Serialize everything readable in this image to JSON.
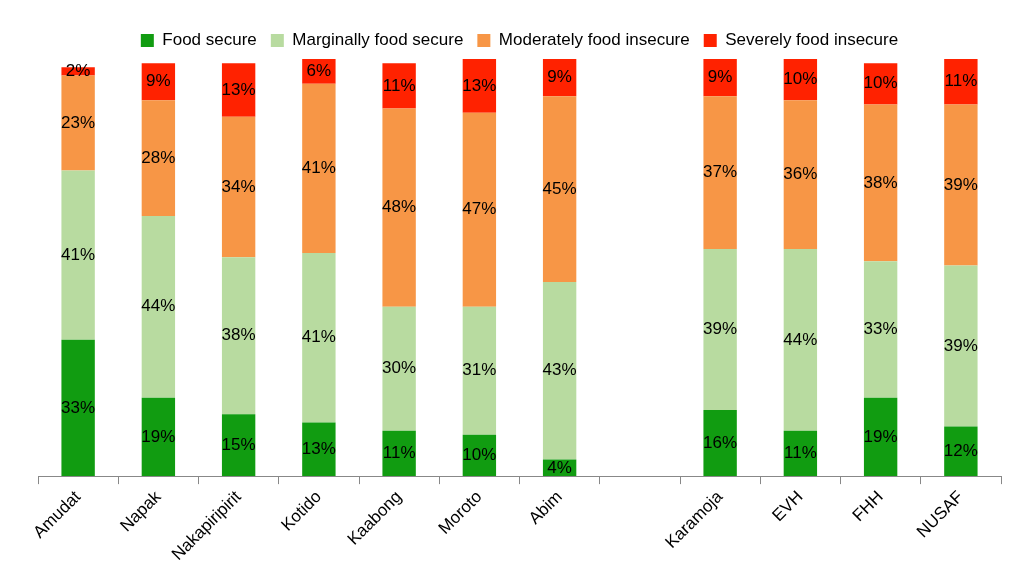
{
  "chart_data": {
    "type": "bar",
    "stacked": true,
    "legend": "top",
    "tick_labels": "x",
    "categories": [
      "Amudat",
      "Napak",
      "Nakapiripirit",
      "Kotido",
      "Kaabong",
      "Moroto",
      "Abim",
      null,
      "Karamoja",
      "EVH",
      "FHH",
      "NUSAF"
    ],
    "series": [
      {
        "name": "Food secure",
        "color": "#119c11",
        "values": [
          33,
          19,
          15,
          13,
          11,
          10,
          4,
          null,
          16,
          11,
          19,
          12
        ],
        "value_labels": [
          "33%",
          "19%",
          "15%",
          "13%",
          "11%",
          "10%",
          "4%",
          null,
          "16%",
          "11%",
          "19%",
          "12%"
        ]
      },
      {
        "name": "Marginally food secure",
        "color": "#b8dba0",
        "values": [
          41,
          44,
          38,
          41,
          30,
          31,
          43,
          null,
          39,
          44,
          33,
          39
        ],
        "value_labels": [
          "41%",
          "44%",
          "38%",
          "41%",
          "30%",
          "31%",
          "43%",
          null,
          "39%",
          "44%",
          "33%",
          "39%"
        ]
      },
      {
        "name": "Moderately food insecure",
        "color": "#f79646",
        "values": [
          23,
          28,
          34,
          41,
          48,
          47,
          45,
          null,
          37,
          36,
          38,
          39
        ],
        "value_labels": [
          "23%",
          "28%",
          "34%",
          "41%",
          "48%",
          "47%",
          "45%",
          null,
          "37%",
          "36%",
          "38%",
          "39%"
        ]
      },
      {
        "name": "Severely food insecure",
        "color": "#ff2200",
        "values": [
          2,
          9,
          13,
          6,
          11,
          13,
          9,
          null,
          9,
          10,
          10,
          11
        ],
        "value_labels": [
          "2%",
          "9%",
          "13%",
          "6%",
          "11%",
          "13%",
          "9%",
          null,
          "9%",
          "10%",
          "10%",
          "11%"
        ]
      }
    ]
  }
}
